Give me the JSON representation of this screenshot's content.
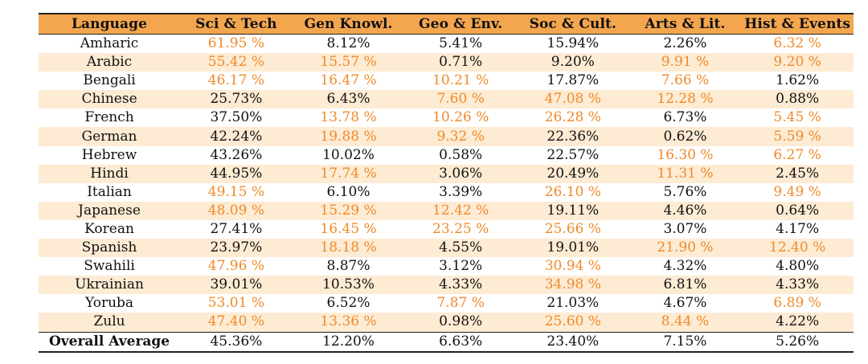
{
  "table": {
    "headers": [
      "Language",
      "Sci & Tech",
      "Gen Knowl.",
      "Geo & Env.",
      "Soc & Cult.",
      "Arts & Lit.",
      "Hist & Events"
    ],
    "rows": [
      {
        "lang": "Amharic",
        "cells": [
          {
            "v": "61.95 %",
            "hl": true
          },
          {
            "v": "8.12%",
            "hl": false
          },
          {
            "v": "5.41%",
            "hl": false
          },
          {
            "v": "15.94%",
            "hl": false
          },
          {
            "v": "2.26%",
            "hl": false
          },
          {
            "v": "6.32 %",
            "hl": true
          }
        ]
      },
      {
        "lang": "Arabic",
        "cells": [
          {
            "v": "55.42 %",
            "hl": true
          },
          {
            "v": "15.57 %",
            "hl": true
          },
          {
            "v": "0.71%",
            "hl": false
          },
          {
            "v": "9.20%",
            "hl": false
          },
          {
            "v": "9.91 %",
            "hl": true
          },
          {
            "v": "9.20 %",
            "hl": true
          }
        ]
      },
      {
        "lang": "Bengali",
        "cells": [
          {
            "v": "46.17 %",
            "hl": true
          },
          {
            "v": "16.47 %",
            "hl": true
          },
          {
            "v": "10.21 %",
            "hl": true
          },
          {
            "v": "17.87%",
            "hl": false
          },
          {
            "v": "7.66 %",
            "hl": true
          },
          {
            "v": "1.62%",
            "hl": false
          }
        ]
      },
      {
        "lang": "Chinese",
        "cells": [
          {
            "v": "25.73%",
            "hl": false
          },
          {
            "v": "6.43%",
            "hl": false
          },
          {
            "v": "7.60 %",
            "hl": true
          },
          {
            "v": "47.08 %",
            "hl": true
          },
          {
            "v": "12.28 %",
            "hl": true
          },
          {
            "v": "0.88%",
            "hl": false
          }
        ]
      },
      {
        "lang": "French",
        "cells": [
          {
            "v": "37.50%",
            "hl": false
          },
          {
            "v": "13.78 %",
            "hl": true
          },
          {
            "v": "10.26 %",
            "hl": true
          },
          {
            "v": "26.28 %",
            "hl": true
          },
          {
            "v": "6.73%",
            "hl": false
          },
          {
            "v": "5.45 %",
            "hl": true
          }
        ]
      },
      {
        "lang": "German",
        "cells": [
          {
            "v": "42.24%",
            "hl": false
          },
          {
            "v": "19.88 %",
            "hl": true
          },
          {
            "v": "9.32 %",
            "hl": true
          },
          {
            "v": "22.36%",
            "hl": false
          },
          {
            "v": "0.62%",
            "hl": false
          },
          {
            "v": "5.59 %",
            "hl": true
          }
        ]
      },
      {
        "lang": "Hebrew",
        "cells": [
          {
            "v": "43.26%",
            "hl": false
          },
          {
            "v": "10.02%",
            "hl": false
          },
          {
            "v": "0.58%",
            "hl": false
          },
          {
            "v": "22.57%",
            "hl": false
          },
          {
            "v": "16.30 %",
            "hl": true
          },
          {
            "v": "6.27 %",
            "hl": true
          }
        ]
      },
      {
        "lang": "Hindi",
        "cells": [
          {
            "v": "44.95%",
            "hl": false
          },
          {
            "v": "17.74 %",
            "hl": true
          },
          {
            "v": "3.06%",
            "hl": false
          },
          {
            "v": "20.49%",
            "hl": false
          },
          {
            "v": "11.31 %",
            "hl": true
          },
          {
            "v": "2.45%",
            "hl": false
          }
        ]
      },
      {
        "lang": "Italian",
        "cells": [
          {
            "v": "49.15 %",
            "hl": true
          },
          {
            "v": "6.10%",
            "hl": false
          },
          {
            "v": "3.39%",
            "hl": false
          },
          {
            "v": "26.10 %",
            "hl": true
          },
          {
            "v": "5.76%",
            "hl": false
          },
          {
            "v": "9.49 %",
            "hl": true
          }
        ]
      },
      {
        "lang": "Japanese",
        "cells": [
          {
            "v": "48.09 %",
            "hl": true
          },
          {
            "v": "15.29 %",
            "hl": true
          },
          {
            "v": "12.42 %",
            "hl": true
          },
          {
            "v": "19.11%",
            "hl": false
          },
          {
            "v": "4.46%",
            "hl": false
          },
          {
            "v": "0.64%",
            "hl": false
          }
        ]
      },
      {
        "lang": "Korean",
        "cells": [
          {
            "v": "27.41%",
            "hl": false
          },
          {
            "v": "16.45 %",
            "hl": true
          },
          {
            "v": "23.25 %",
            "hl": true
          },
          {
            "v": "25.66 %",
            "hl": true
          },
          {
            "v": "3.07%",
            "hl": false
          },
          {
            "v": "4.17%",
            "hl": false
          }
        ]
      },
      {
        "lang": "Spanish",
        "cells": [
          {
            "v": "23.97%",
            "hl": false
          },
          {
            "v": "18.18 %",
            "hl": true
          },
          {
            "v": "4.55%",
            "hl": false
          },
          {
            "v": "19.01%",
            "hl": false
          },
          {
            "v": "21.90 %",
            "hl": true
          },
          {
            "v": "12.40 %",
            "hl": true
          }
        ]
      },
      {
        "lang": "Swahili",
        "cells": [
          {
            "v": "47.96 %",
            "hl": true
          },
          {
            "v": "8.87%",
            "hl": false
          },
          {
            "v": "3.12%",
            "hl": false
          },
          {
            "v": "30.94 %",
            "hl": true
          },
          {
            "v": "4.32%",
            "hl": false
          },
          {
            "v": "4.80%",
            "hl": false
          }
        ]
      },
      {
        "lang": "Ukrainian",
        "cells": [
          {
            "v": "39.01%",
            "hl": false
          },
          {
            "v": "10.53%",
            "hl": false
          },
          {
            "v": "4.33%",
            "hl": false
          },
          {
            "v": "34.98 %",
            "hl": true
          },
          {
            "v": "6.81%",
            "hl": false
          },
          {
            "v": "4.33%",
            "hl": false
          }
        ]
      },
      {
        "lang": "Yoruba",
        "cells": [
          {
            "v": "53.01 %",
            "hl": true
          },
          {
            "v": "6.52%",
            "hl": false
          },
          {
            "v": "7.87 %",
            "hl": true
          },
          {
            "v": "21.03%",
            "hl": false
          },
          {
            "v": "4.67%",
            "hl": false
          },
          {
            "v": "6.89 %",
            "hl": true
          }
        ]
      },
      {
        "lang": "Zulu",
        "cells": [
          {
            "v": "47.40 %",
            "hl": true
          },
          {
            "v": "13.36 %",
            "hl": true
          },
          {
            "v": "0.98%",
            "hl": false
          },
          {
            "v": "25.60 %",
            "hl": true
          },
          {
            "v": "8.44 %",
            "hl": true
          },
          {
            "v": "4.22%",
            "hl": false
          }
        ]
      }
    ],
    "average": {
      "lang": "Overall Average",
      "cells": [
        "45.36%",
        "12.20%",
        "6.63%",
        "23.40%",
        "7.15%",
        "5.26%"
      ]
    }
  },
  "colors": {
    "header_bg": "#f4a64f",
    "stripe_bg": "#fdebd3",
    "highlight_text": "#f08a2a"
  }
}
